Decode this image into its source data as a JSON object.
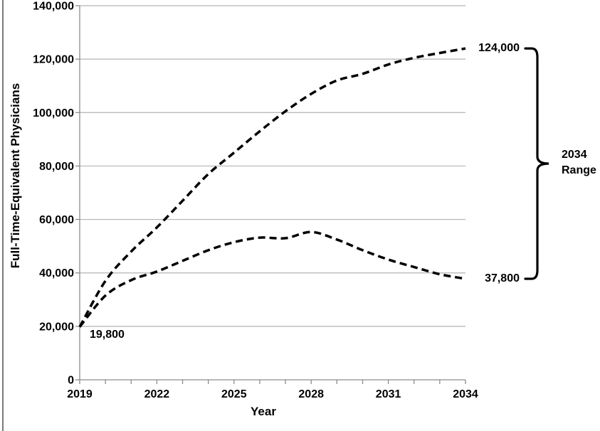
{
  "colors": {
    "line": "#000000",
    "grid": "#b3b3b3",
    "axis": "#8c8c8c",
    "text": "#000000",
    "page_border": "#7a7a7a",
    "background": "#ffffff"
  },
  "chart_data": {
    "type": "line",
    "title": "",
    "xlabel": "Year",
    "ylabel": "Full-Time-Equivalent Physicians",
    "x_range": [
      2019,
      2034
    ],
    "y_range": [
      0,
      140000
    ],
    "y_tick_step": 20000,
    "y_tick_labels": [
      "0",
      "20,000",
      "40,000",
      "60,000",
      "80,000",
      "100,000",
      "120,000",
      "140,000"
    ],
    "x_ticks_minor_every": 1,
    "x_ticks_major": [
      2019,
      2022,
      2025,
      2028,
      2031,
      2034
    ],
    "x_tick_labels": [
      "2019",
      "2022",
      "2025",
      "2028",
      "2031",
      "2034"
    ],
    "grid": true,
    "legend": "none",
    "line_style": "dashed",
    "x": [
      2019,
      2020,
      2021,
      2022,
      2023,
      2024,
      2025,
      2026,
      2027,
      2028,
      2029,
      2030,
      2031,
      2032,
      2033,
      2034
    ],
    "series": [
      {
        "name": "high_projection",
        "color": "#000000",
        "values": [
          19800,
          37000,
          48000,
          57000,
          67000,
          77000,
          85000,
          93000,
          100500,
          107000,
          112000,
          114500,
          118000,
          120500,
          122300,
          124000
        ]
      },
      {
        "name": "low_projection",
        "color": "#000000",
        "values": [
          19800,
          31500,
          37300,
          40500,
          44500,
          48500,
          51500,
          53200,
          53000,
          55300,
          52500,
          48500,
          45000,
          42200,
          39500,
          37800
        ]
      }
    ],
    "annotations": {
      "start_label": "19,800",
      "top_end_label": "124,000",
      "bottom_end_label": "37,800",
      "brace_label_line1": "2034",
      "brace_label_line2": "Range"
    }
  }
}
